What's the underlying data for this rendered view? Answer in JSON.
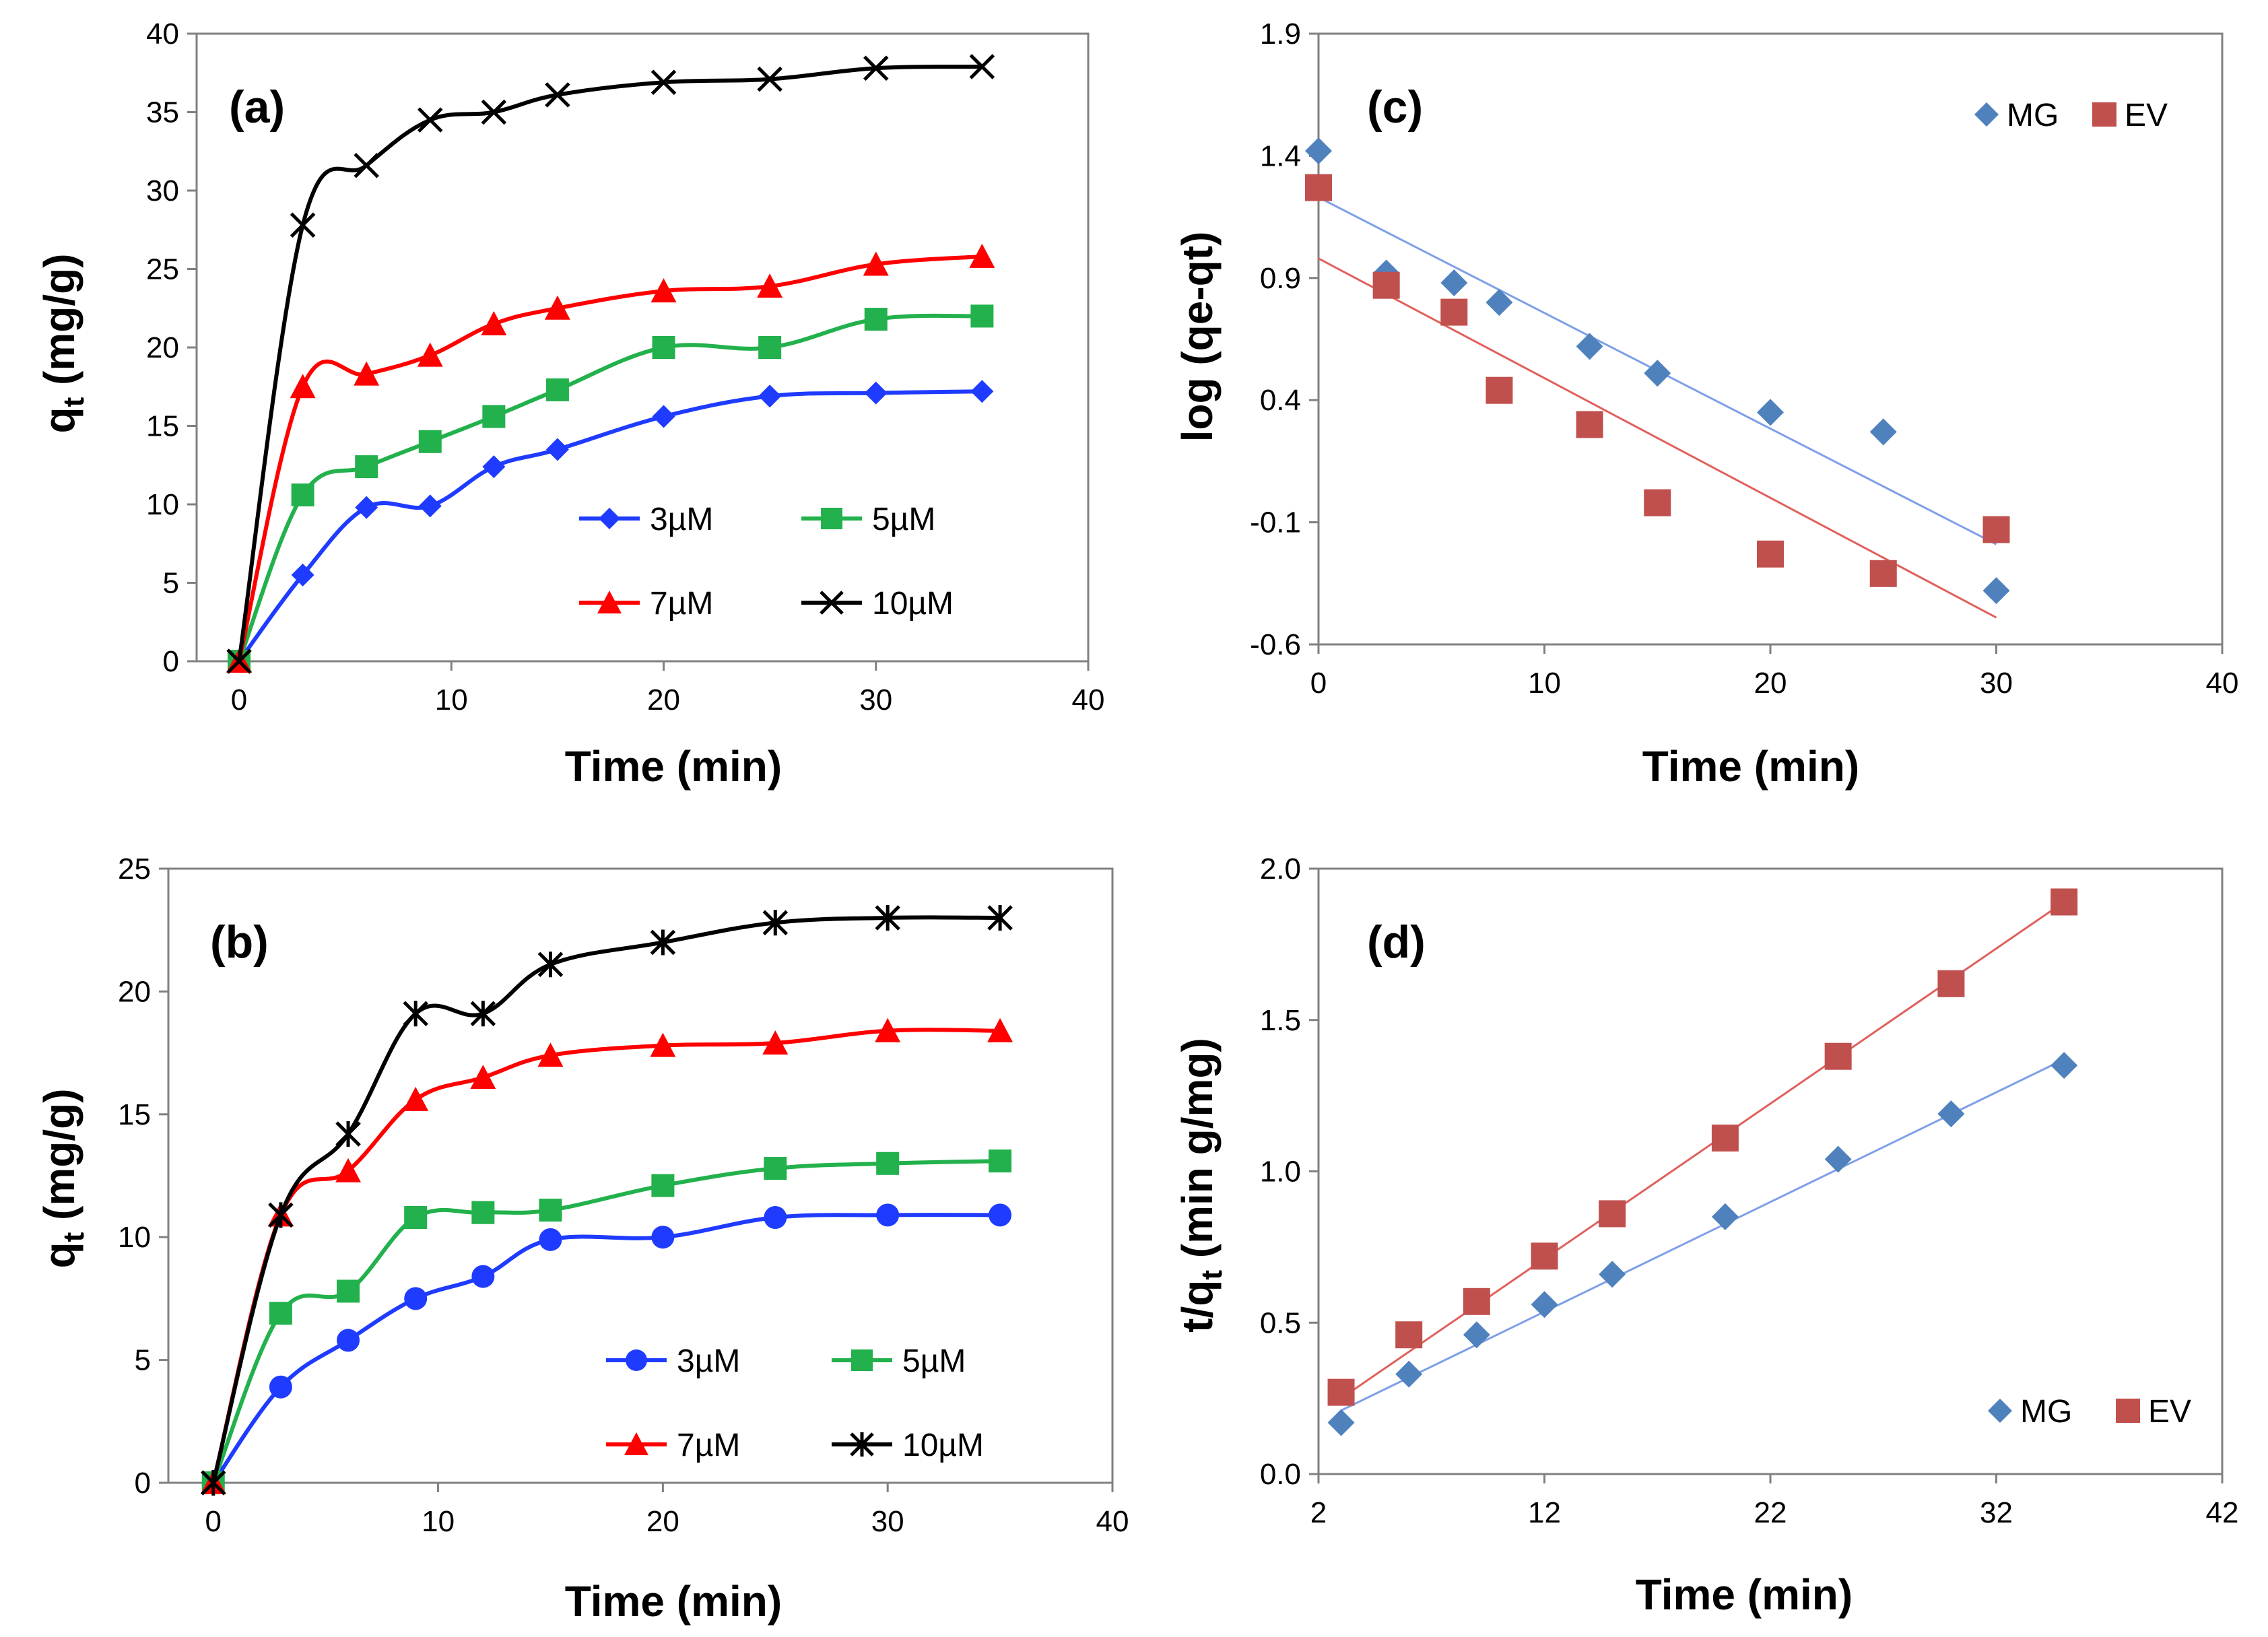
{
  "figure": {
    "colors": {
      "blue": "#1F3BFF",
      "green": "#22B14C",
      "red": "#FF0000",
      "black": "#000000",
      "mg_point": "#4F81BD",
      "ev_point": "#C0504D",
      "mg_line": "#7F9FE8",
      "ev_line": "#E0605C",
      "axis": "#808080"
    }
  },
  "chart_data": [
    {
      "id": "a",
      "type": "line",
      "panel_label": "(a)",
      "xlabel": "Time (min)",
      "ylabel_main": "q",
      "ylabel_sub": "t",
      "ylabel_rest": " (mg/g)",
      "xlim": [
        -2,
        40
      ],
      "ylim": [
        0,
        40
      ],
      "xticks": [
        0,
        10,
        20,
        30,
        40
      ],
      "yticks": [
        0,
        5,
        10,
        15,
        20,
        25,
        30,
        35,
        40
      ],
      "legend_position": "bottom-right",
      "series": [
        {
          "name": "3µM",
          "color": "#1F3BFF",
          "marker": "diamond",
          "x": [
            0,
            3,
            6,
            9,
            12,
            15,
            20,
            25,
            30,
            35
          ],
          "y": [
            0,
            5.5,
            9.8,
            9.9,
            12.4,
            13.5,
            15.6,
            16.9,
            17.1,
            17.2
          ]
        },
        {
          "name": "5µM",
          "color": "#22B14C",
          "marker": "square",
          "x": [
            0,
            3,
            6,
            9,
            12,
            15,
            20,
            25,
            30,
            35
          ],
          "y": [
            0,
            10.6,
            12.4,
            14.0,
            15.6,
            17.3,
            20.0,
            20.0,
            21.8,
            22.0
          ]
        },
        {
          "name": "7µM",
          "color": "#FF0000",
          "marker": "triangle",
          "x": [
            0,
            3,
            6,
            9,
            12,
            15,
            20,
            25,
            30,
            35
          ],
          "y": [
            0,
            17.5,
            18.3,
            19.5,
            21.5,
            22.5,
            23.6,
            23.9,
            25.3,
            25.8
          ]
        },
        {
          "name": "10µM",
          "color": "#000000",
          "marker": "x",
          "x": [
            0,
            3,
            6,
            9,
            12,
            15,
            20,
            25,
            30,
            35
          ],
          "y": [
            0,
            27.8,
            31.6,
            34.5,
            35.0,
            36.1,
            36.9,
            37.1,
            37.8,
            37.9
          ]
        }
      ]
    },
    {
      "id": "b",
      "type": "line",
      "panel_label": "(b)",
      "xlabel": "Time (min)",
      "ylabel_main": "q",
      "ylabel_sub": "t",
      "ylabel_rest": " (mg/g)",
      "xlim": [
        -2,
        40
      ],
      "ylim": [
        0,
        25
      ],
      "xticks": [
        0,
        10,
        20,
        30,
        40
      ],
      "yticks": [
        0,
        5,
        10,
        15,
        20,
        25
      ],
      "legend_position": "bottom-right",
      "series": [
        {
          "name": "3µM",
          "color": "#1F3BFF",
          "marker": "circle",
          "x": [
            0,
            3,
            6,
            9,
            12,
            15,
            20,
            25,
            30,
            35
          ],
          "y": [
            0,
            3.9,
            5.8,
            7.5,
            8.4,
            9.9,
            10.0,
            10.8,
            10.9,
            10.9
          ]
        },
        {
          "name": "5µM",
          "color": "#22B14C",
          "marker": "square",
          "x": [
            0,
            3,
            6,
            9,
            12,
            15,
            20,
            25,
            30,
            35
          ],
          "y": [
            0,
            6.9,
            7.8,
            10.8,
            11.0,
            11.1,
            12.1,
            12.8,
            13.0,
            13.1
          ]
        },
        {
          "name": "7µM",
          "color": "#FF0000",
          "marker": "triangle",
          "x": [
            0,
            3,
            6,
            9,
            12,
            15,
            20,
            25,
            30,
            35
          ],
          "y": [
            0,
            10.9,
            12.7,
            15.6,
            16.5,
            17.4,
            17.8,
            17.9,
            18.4,
            18.4
          ]
        },
        {
          "name": "10µM",
          "color": "#000000",
          "marker": "asterisk",
          "x": [
            0,
            3,
            6,
            9,
            12,
            15,
            20,
            25,
            30,
            35
          ],
          "y": [
            0,
            10.9,
            14.2,
            19.1,
            19.1,
            21.1,
            22.0,
            22.8,
            23.0,
            23.0
          ]
        }
      ]
    },
    {
      "id": "c",
      "type": "scatter",
      "panel_label": "(c)",
      "xlabel": "Time (min)",
      "ylabel": "log (qe-qt)",
      "xlim": [
        0,
        40
      ],
      "ylim": [
        -0.6,
        1.9
      ],
      "xticks": [
        0,
        10,
        20,
        30,
        40
      ],
      "yticks": [
        -0.6,
        -0.1,
        0.4,
        0.9,
        1.4,
        1.9
      ],
      "ytick_labels": [
        "-0.6",
        "-0.1",
        "0.4",
        "0.9",
        "1.4",
        "1.9"
      ],
      "legend_position": "top-right",
      "series": [
        {
          "name": "MG",
          "color": "#4F81BD",
          "marker": "diamond",
          "x": [
            0,
            3,
            6,
            8,
            12,
            15,
            20,
            25,
            30
          ],
          "y": [
            1.42,
            0.92,
            0.88,
            0.8,
            0.62,
            0.51,
            0.35,
            0.27,
            -0.38
          ],
          "fit": {
            "x": [
              0,
              30
            ],
            "y": [
              1.23,
              -0.19
            ],
            "color": "#7F9FE8"
          }
        },
        {
          "name": "EV",
          "color": "#C0504D",
          "marker": "square",
          "x": [
            0,
            3,
            6,
            8,
            12,
            15,
            20,
            25,
            30
          ],
          "y": [
            1.27,
            0.87,
            0.76,
            0.44,
            0.3,
            -0.02,
            -0.23,
            -0.31,
            -0.13
          ],
          "fit": {
            "x": [
              0,
              30
            ],
            "y": [
              0.98,
              -0.49
            ],
            "color": "#E0605C"
          }
        }
      ]
    },
    {
      "id": "d",
      "type": "scatter",
      "panel_label": "(d)",
      "xlabel": "Time (min)",
      "ylabel_main": "t/q",
      "ylabel_sub": "t",
      "ylabel_rest": " (min g/mg)",
      "xlim": [
        2,
        42
      ],
      "ylim": [
        0,
        2.0
      ],
      "xticks": [
        2,
        12,
        22,
        32,
        42
      ],
      "yticks": [
        0,
        0.5,
        1.0,
        1.5,
        2.0
      ],
      "ytick_labels": [
        "0.0",
        "0.5",
        "1.0",
        "1.5",
        "2.0"
      ],
      "legend_position": "bottom-right",
      "series": [
        {
          "name": "MG",
          "color": "#4F81BD",
          "marker": "diamond",
          "x": [
            3,
            6,
            9,
            12,
            15,
            20,
            25,
            30,
            35
          ],
          "y": [
            0.17,
            0.33,
            0.46,
            0.56,
            0.66,
            0.85,
            1.04,
            1.19,
            1.35
          ],
          "fit": {
            "x": [
              3,
              35
            ],
            "y": [
              0.21,
              1.37
            ],
            "color": "#7F9FE8"
          }
        },
        {
          "name": "EV",
          "color": "#C0504D",
          "marker": "square",
          "x": [
            3,
            6,
            9,
            12,
            15,
            20,
            25,
            30,
            35
          ],
          "y": [
            0.27,
            0.46,
            0.57,
            0.72,
            0.86,
            1.11,
            1.38,
            1.62,
            1.89
          ],
          "fit": {
            "x": [
              3,
              35
            ],
            "y": [
              0.25,
              1.89
            ],
            "color": "#E0605C"
          }
        }
      ]
    }
  ]
}
